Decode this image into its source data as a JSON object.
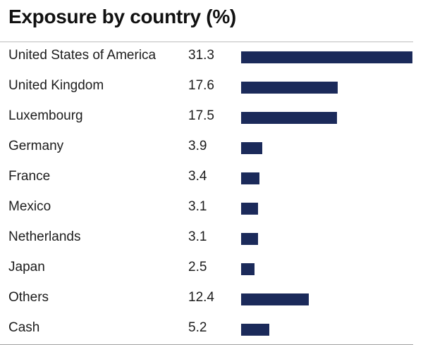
{
  "chart_data": {
    "type": "bar",
    "orientation": "horizontal",
    "title": "Exposure by country (%)",
    "categories": [
      "United States of America",
      "United Kingdom",
      "Luxembourg",
      "Germany",
      "France",
      "Mexico",
      "Netherlands",
      "Japan",
      "Others",
      "Cash"
    ],
    "values": [
      31.3,
      17.6,
      17.5,
      3.9,
      3.4,
      3.1,
      3.1,
      2.5,
      12.4,
      5.2
    ],
    "value_labels": [
      "31.3",
      "17.6",
      "17.5",
      "3.9",
      "3.4",
      "3.1",
      "3.1",
      "2.5",
      "12.4",
      "5.2"
    ],
    "xlim": [
      0,
      31.3
    ],
    "bar_color": "#1b2a5a",
    "grid": false,
    "legend": "none"
  }
}
